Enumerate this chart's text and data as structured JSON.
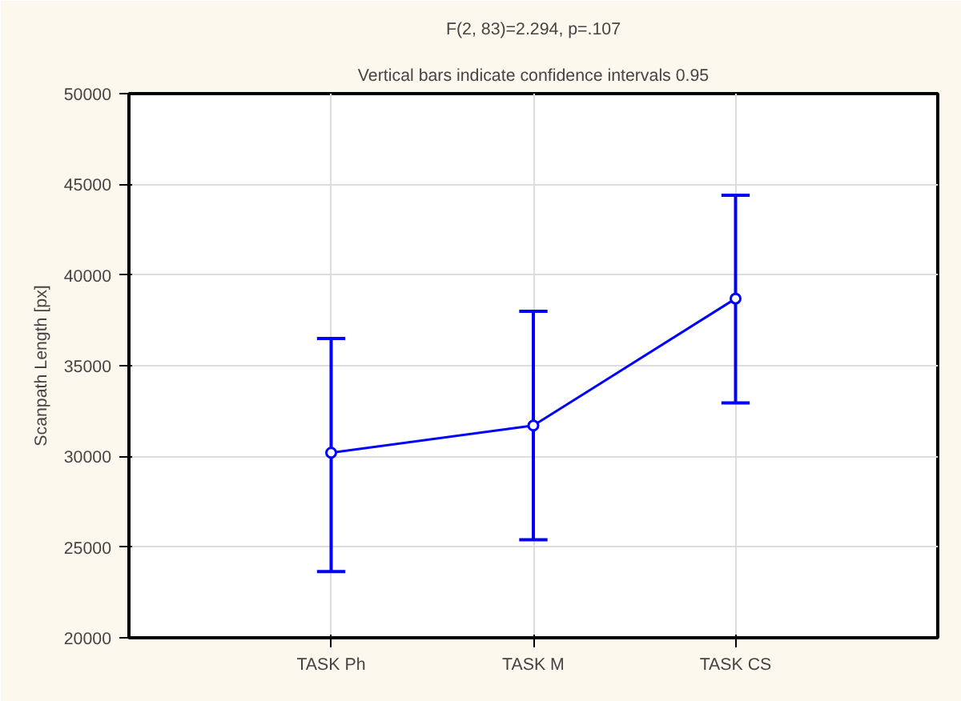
{
  "chart_data": {
    "type": "line",
    "title": "F(2, 83)=2.294, p=.107",
    "subtitle": "Vertical bars indicate confidence intervals 0.95",
    "ylabel": "Scanpath Length [px]",
    "categories": [
      "TASK Ph",
      "TASK M",
      "TASK CS"
    ],
    "series": [
      {
        "color": "#0000ff",
        "values": [
          30200,
          31700,
          38700
        ],
        "errors": [
          [
            23650,
            36500
          ],
          [
            25400,
            38000
          ],
          [
            32950,
            44400
          ]
        ]
      }
    ],
    "ylim": [
      20000,
      50000
    ],
    "yticks": [
      20000,
      25000,
      30000,
      35000,
      40000,
      45000,
      50000
    ],
    "grid": true,
    "marker": "circle",
    "line_style": "solid"
  }
}
